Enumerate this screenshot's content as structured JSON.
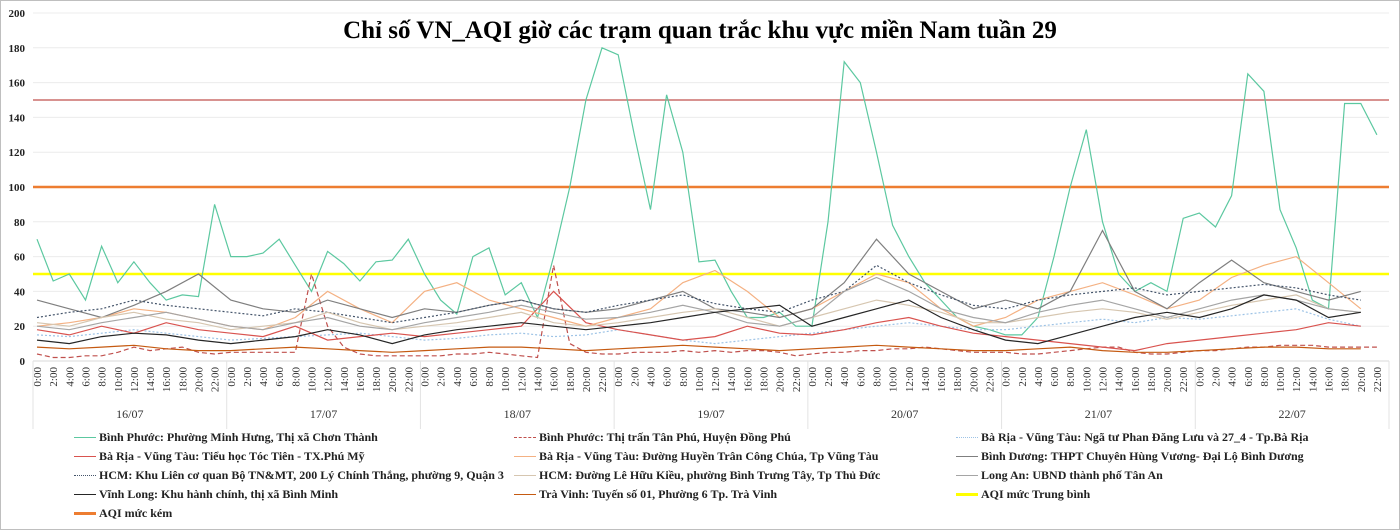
{
  "chart_data": {
    "type": "line",
    "title": "Chỉ số VN_AQI giờ các trạm quan trắc khu vực miền Nam tuần 29",
    "xlabel": "",
    "ylabel": "",
    "ylim": [
      0,
      200
    ],
    "yticks": [
      "0",
      "20",
      "40",
      "60",
      "80",
      "100",
      "120",
      "140",
      "160",
      "180",
      "200"
    ],
    "hour_labels": [
      "0:00",
      "2:00",
      "4:00",
      "6:00",
      "8:00",
      "10:00",
      "12:00",
      "14:00",
      "16:00",
      "18:00",
      "20:00",
      "22:00"
    ],
    "days": [
      "16/07",
      "17/07",
      "18/07",
      "19/07",
      "20/07",
      "21/07",
      "22/07"
    ],
    "grid": true,
    "legend_position": "bottom",
    "thresholds": [
      {
        "name": "AQI mức Trung bình",
        "value": 50,
        "color": "#ffff00",
        "legend": true
      },
      {
        "name": "AQI mức kém",
        "value": 100,
        "color": "#ed7d31",
        "legend": true
      },
      {
        "name": "",
        "value": 150,
        "color": "#c0504d",
        "legend": false
      }
    ],
    "series": [
      {
        "name": "Bình Phước: Phường Minh Hưng, Thị xã Chơn Thành",
        "color": "#5cc8a0",
        "dash": "",
        "step_hours": 2,
        "values": [
          70,
          46,
          50,
          35,
          66,
          45,
          57,
          45,
          35,
          38,
          37,
          90,
          60,
          60,
          62,
          70,
          55,
          40,
          63,
          56,
          46,
          57,
          58,
          70,
          50,
          35,
          27,
          60,
          65,
          38,
          45,
          25,
          60,
          100,
          150,
          180,
          176,
          130,
          87,
          153,
          120,
          57,
          58,
          40,
          25,
          25,
          28,
          20,
          20,
          80,
          172,
          160,
          120,
          78,
          60,
          45,
          35,
          25,
          20,
          18,
          15,
          15,
          25,
          60,
          100,
          133,
          80,
          50,
          40,
          45,
          40,
          82,
          85,
          77,
          95,
          165,
          155,
          87,
          65,
          35,
          30,
          148,
          148,
          130
        ]
      },
      {
        "name": "Bình Phước: Thị trấn Tân Phú, Huyện Đồng Phú",
        "color": "#c0504d",
        "dash": "5,3",
        "step_hours": 2,
        "values": [
          4,
          2,
          2,
          3,
          3,
          5,
          8,
          6,
          7,
          8,
          5,
          4,
          5,
          5,
          5,
          5,
          5,
          50,
          20,
          8,
          4,
          3,
          3,
          3,
          3,
          3,
          4,
          4,
          5,
          4,
          3,
          2,
          55,
          10,
          5,
          4,
          4,
          5,
          5,
          5,
          6,
          5,
          6,
          5,
          6,
          6,
          5,
          3,
          4,
          5,
          5,
          6,
          6,
          7,
          7,
          8,
          7,
          6,
          5,
          5,
          5,
          4,
          4,
          5,
          6,
          7,
          8,
          8,
          5,
          4,
          4,
          5,
          6,
          6,
          7,
          8,
          8,
          9,
          9,
          9,
          8,
          8,
          8,
          8
        ]
      },
      {
        "name": "Bà Rịa - Vũng Tàu: Ngã tư Phan Đăng Lưu và 27_4 - Tp.Bà Rịa",
        "color": "#9dc3e6",
        "dash": "2,2",
        "step_hours": 4,
        "values": [
          15,
          14,
          16,
          18,
          16,
          14,
          12,
          13,
          14,
          15,
          16,
          14,
          12,
          13,
          15,
          16,
          14,
          15,
          18,
          15,
          12,
          10,
          12,
          14,
          16,
          18,
          20,
          22,
          20,
          18,
          18,
          20,
          22,
          24,
          22,
          25,
          24,
          26,
          28,
          30,
          24,
          20
        ]
      },
      {
        "name": "Bà Rịa - Vũng Tàu: Tiểu học Tóc Tiên - TX.Phú Mỹ",
        "color": "#d9534f",
        "dash": "",
        "step_hours": 4,
        "values": [
          18,
          15,
          20,
          16,
          22,
          18,
          16,
          14,
          20,
          12,
          14,
          16,
          14,
          16,
          18,
          20,
          40,
          22,
          18,
          15,
          12,
          14,
          20,
          16,
          15,
          18,
          22,
          25,
          20,
          16,
          14,
          12,
          10,
          8,
          6,
          10,
          12,
          14,
          16,
          18,
          22,
          20
        ]
      },
      {
        "name": "Bà Rịa - Vũng Tàu: Đường Huyền Trân Công Chúa, Tp Vũng Tàu",
        "color": "#f4b183",
        "dash": "",
        "step_hours": 4,
        "values": [
          20,
          22,
          25,
          30,
          28,
          24,
          20,
          18,
          25,
          40,
          30,
          22,
          40,
          45,
          35,
          30,
          25,
          20,
          25,
          30,
          45,
          52,
          40,
          25,
          30,
          40,
          50,
          45,
          30,
          20,
          25,
          35,
          40,
          45,
          38,
          30,
          35,
          48,
          55,
          60,
          45,
          30
        ]
      },
      {
        "name": "Bình Dương: THPT Chuyên Hùng Vương- Đại Lộ Bình Dương",
        "color": "#7f7f7f",
        "dash": "",
        "step_hours": 4,
        "values": [
          35,
          30,
          25,
          32,
          40,
          50,
          35,
          30,
          28,
          35,
          30,
          25,
          30,
          28,
          32,
          35,
          30,
          28,
          30,
          35,
          40,
          30,
          28,
          25,
          30,
          45,
          70,
          50,
          40,
          30,
          35,
          30,
          40,
          75,
          40,
          30,
          45,
          58,
          45,
          40,
          35,
          40
        ]
      },
      {
        "name": "HCM: Khu Liên cơ quan Bộ TN&MT, 200 Lý Chính Thắng, phường 9, Quận 3",
        "color": "#44546a",
        "dash": "2,2",
        "step_hours": 4,
        "values": [
          25,
          28,
          30,
          35,
          32,
          30,
          28,
          26,
          30,
          28,
          25,
          22,
          25,
          28,
          32,
          35,
          30,
          28,
          32,
          35,
          38,
          33,
          30,
          28,
          35,
          40,
          55,
          45,
          38,
          32,
          30,
          35,
          38,
          40,
          42,
          38,
          40,
          42,
          44,
          42,
          38,
          35
        ]
      },
      {
        "name": "HCM: Đường Lê Hữu Kiều, phường Bình Trưng Tây, Tp Thủ Đức",
        "color": "#d6c6b0",
        "dash": "",
        "step_hours": 4,
        "values": [
          22,
          20,
          25,
          28,
          24,
          22,
          18,
          20,
          22,
          28,
          22,
          18,
          20,
          22,
          25,
          28,
          22,
          20,
          22,
          25,
          28,
          30,
          25,
          20,
          25,
          30,
          35,
          32,
          28,
          22,
          22,
          25,
          28,
          30,
          28,
          24,
          28,
          32,
          35,
          38,
          30,
          28
        ]
      },
      {
        "name": "Long An: UBND thành phố Tân An",
        "color": "#a5a5a5",
        "dash": "",
        "step_hours": 4,
        "values": [
          20,
          18,
          22,
          25,
          28,
          24,
          20,
          18,
          22,
          25,
          20,
          18,
          22,
          25,
          28,
          32,
          28,
          24,
          25,
          28,
          32,
          28,
          22,
          20,
          25,
          40,
          48,
          40,
          30,
          25,
          22,
          28,
          32,
          35,
          30,
          25,
          30,
          35,
          38,
          35,
          30,
          28
        ]
      },
      {
        "name": "Vĩnh Long: Khu hành chính, thị xã Bình Minh",
        "color": "#262626",
        "dash": "",
        "step_hours": 4,
        "values": [
          12,
          10,
          14,
          16,
          15,
          12,
          10,
          12,
          14,
          18,
          15,
          10,
          15,
          18,
          20,
          22,
          20,
          18,
          20,
          22,
          25,
          28,
          30,
          32,
          20,
          25,
          30,
          35,
          25,
          18,
          12,
          10,
          15,
          20,
          25,
          28,
          25,
          30,
          38,
          35,
          25,
          28
        ]
      },
      {
        "name": "Trà Vinh: Tuyến số 01, Phường 6 Tp. Trà Vinh",
        "color": "#c55a11",
        "dash": "",
        "step_hours": 4,
        "values": [
          8,
          7,
          8,
          9,
          7,
          6,
          6,
          7,
          8,
          7,
          6,
          5,
          6,
          7,
          8,
          8,
          7,
          6,
          7,
          8,
          9,
          8,
          7,
          6,
          7,
          8,
          9,
          8,
          7,
          6,
          6,
          7,
          8,
          6,
          5,
          5,
          6,
          7,
          8,
          8,
          7,
          7
        ]
      }
    ]
  }
}
